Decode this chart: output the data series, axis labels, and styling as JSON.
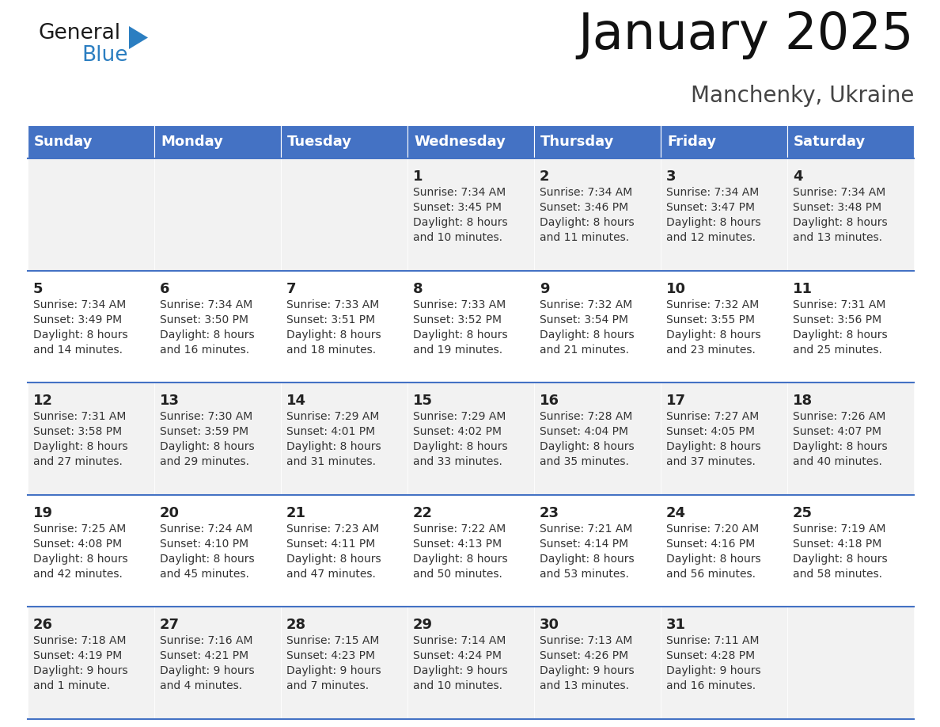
{
  "title": "January 2025",
  "subtitle": "Manchenky, Ukraine",
  "header_color": "#4472C4",
  "header_text_color": "#FFFFFF",
  "day_names": [
    "Sunday",
    "Monday",
    "Tuesday",
    "Wednesday",
    "Thursday",
    "Friday",
    "Saturday"
  ],
  "background_color": "#FFFFFF",
  "cell_bg_row0": "#F2F2F2",
  "cell_bg_row1": "#FFFFFF",
  "cell_bg_row2": "#F2F2F2",
  "cell_bg_row3": "#FFFFFF",
  "cell_bg_row4": "#F2F2F2",
  "row_line_color": "#4472C4",
  "text_color_day": "#222222",
  "text_color_info": "#333333",
  "logo_black": "#1a1a1a",
  "logo_blue": "#2b7ec1",
  "logo_tri_color": "#2b7ec1",
  "days": [
    {
      "day": 1,
      "col": 3,
      "row": 0,
      "sunrise": "7:34 AM",
      "sunset": "3:45 PM",
      "daylight_h": "8 hours",
      "daylight_m": "and 10 minutes."
    },
    {
      "day": 2,
      "col": 4,
      "row": 0,
      "sunrise": "7:34 AM",
      "sunset": "3:46 PM",
      "daylight_h": "8 hours",
      "daylight_m": "and 11 minutes."
    },
    {
      "day": 3,
      "col": 5,
      "row": 0,
      "sunrise": "7:34 AM",
      "sunset": "3:47 PM",
      "daylight_h": "8 hours",
      "daylight_m": "and 12 minutes."
    },
    {
      "day": 4,
      "col": 6,
      "row": 0,
      "sunrise": "7:34 AM",
      "sunset": "3:48 PM",
      "daylight_h": "8 hours",
      "daylight_m": "and 13 minutes."
    },
    {
      "day": 5,
      "col": 0,
      "row": 1,
      "sunrise": "7:34 AM",
      "sunset": "3:49 PM",
      "daylight_h": "8 hours",
      "daylight_m": "and 14 minutes."
    },
    {
      "day": 6,
      "col": 1,
      "row": 1,
      "sunrise": "7:34 AM",
      "sunset": "3:50 PM",
      "daylight_h": "8 hours",
      "daylight_m": "and 16 minutes."
    },
    {
      "day": 7,
      "col": 2,
      "row": 1,
      "sunrise": "7:33 AM",
      "sunset": "3:51 PM",
      "daylight_h": "8 hours",
      "daylight_m": "and 18 minutes."
    },
    {
      "day": 8,
      "col": 3,
      "row": 1,
      "sunrise": "7:33 AM",
      "sunset": "3:52 PM",
      "daylight_h": "8 hours",
      "daylight_m": "and 19 minutes."
    },
    {
      "day": 9,
      "col": 4,
      "row": 1,
      "sunrise": "7:32 AM",
      "sunset": "3:54 PM",
      "daylight_h": "8 hours",
      "daylight_m": "and 21 minutes."
    },
    {
      "day": 10,
      "col": 5,
      "row": 1,
      "sunrise": "7:32 AM",
      "sunset": "3:55 PM",
      "daylight_h": "8 hours",
      "daylight_m": "and 23 minutes."
    },
    {
      "day": 11,
      "col": 6,
      "row": 1,
      "sunrise": "7:31 AM",
      "sunset": "3:56 PM",
      "daylight_h": "8 hours",
      "daylight_m": "and 25 minutes."
    },
    {
      "day": 12,
      "col": 0,
      "row": 2,
      "sunrise": "7:31 AM",
      "sunset": "3:58 PM",
      "daylight_h": "8 hours",
      "daylight_m": "and 27 minutes."
    },
    {
      "day": 13,
      "col": 1,
      "row": 2,
      "sunrise": "7:30 AM",
      "sunset": "3:59 PM",
      "daylight_h": "8 hours",
      "daylight_m": "and 29 minutes."
    },
    {
      "day": 14,
      "col": 2,
      "row": 2,
      "sunrise": "7:29 AM",
      "sunset": "4:01 PM",
      "daylight_h": "8 hours",
      "daylight_m": "and 31 minutes."
    },
    {
      "day": 15,
      "col": 3,
      "row": 2,
      "sunrise": "7:29 AM",
      "sunset": "4:02 PM",
      "daylight_h": "8 hours",
      "daylight_m": "and 33 minutes."
    },
    {
      "day": 16,
      "col": 4,
      "row": 2,
      "sunrise": "7:28 AM",
      "sunset": "4:04 PM",
      "daylight_h": "8 hours",
      "daylight_m": "and 35 minutes."
    },
    {
      "day": 17,
      "col": 5,
      "row": 2,
      "sunrise": "7:27 AM",
      "sunset": "4:05 PM",
      "daylight_h": "8 hours",
      "daylight_m": "and 37 minutes."
    },
    {
      "day": 18,
      "col": 6,
      "row": 2,
      "sunrise": "7:26 AM",
      "sunset": "4:07 PM",
      "daylight_h": "8 hours",
      "daylight_m": "and 40 minutes."
    },
    {
      "day": 19,
      "col": 0,
      "row": 3,
      "sunrise": "7:25 AM",
      "sunset": "4:08 PM",
      "daylight_h": "8 hours",
      "daylight_m": "and 42 minutes."
    },
    {
      "day": 20,
      "col": 1,
      "row": 3,
      "sunrise": "7:24 AM",
      "sunset": "4:10 PM",
      "daylight_h": "8 hours",
      "daylight_m": "and 45 minutes."
    },
    {
      "day": 21,
      "col": 2,
      "row": 3,
      "sunrise": "7:23 AM",
      "sunset": "4:11 PM",
      "daylight_h": "8 hours",
      "daylight_m": "and 47 minutes."
    },
    {
      "day": 22,
      "col": 3,
      "row": 3,
      "sunrise": "7:22 AM",
      "sunset": "4:13 PM",
      "daylight_h": "8 hours",
      "daylight_m": "and 50 minutes."
    },
    {
      "day": 23,
      "col": 4,
      "row": 3,
      "sunrise": "7:21 AM",
      "sunset": "4:14 PM",
      "daylight_h": "8 hours",
      "daylight_m": "and 53 minutes."
    },
    {
      "day": 24,
      "col": 5,
      "row": 3,
      "sunrise": "7:20 AM",
      "sunset": "4:16 PM",
      "daylight_h": "8 hours",
      "daylight_m": "and 56 minutes."
    },
    {
      "day": 25,
      "col": 6,
      "row": 3,
      "sunrise": "7:19 AM",
      "sunset": "4:18 PM",
      "daylight_h": "8 hours",
      "daylight_m": "and 58 minutes."
    },
    {
      "day": 26,
      "col": 0,
      "row": 4,
      "sunrise": "7:18 AM",
      "sunset": "4:19 PM",
      "daylight_h": "9 hours",
      "daylight_m": "and 1 minute."
    },
    {
      "day": 27,
      "col": 1,
      "row": 4,
      "sunrise": "7:16 AM",
      "sunset": "4:21 PM",
      "daylight_h": "9 hours",
      "daylight_m": "and 4 minutes."
    },
    {
      "day": 28,
      "col": 2,
      "row": 4,
      "sunrise": "7:15 AM",
      "sunset": "4:23 PM",
      "daylight_h": "9 hours",
      "daylight_m": "and 7 minutes."
    },
    {
      "day": 29,
      "col": 3,
      "row": 4,
      "sunrise": "7:14 AM",
      "sunset": "4:24 PM",
      "daylight_h": "9 hours",
      "daylight_m": "and 10 minutes."
    },
    {
      "day": 30,
      "col": 4,
      "row": 4,
      "sunrise": "7:13 AM",
      "sunset": "4:26 PM",
      "daylight_h": "9 hours",
      "daylight_m": "and 13 minutes."
    },
    {
      "day": 31,
      "col": 5,
      "row": 4,
      "sunrise": "7:11 AM",
      "sunset": "4:28 PM",
      "daylight_h": "9 hours",
      "daylight_m": "and 16 minutes."
    }
  ]
}
